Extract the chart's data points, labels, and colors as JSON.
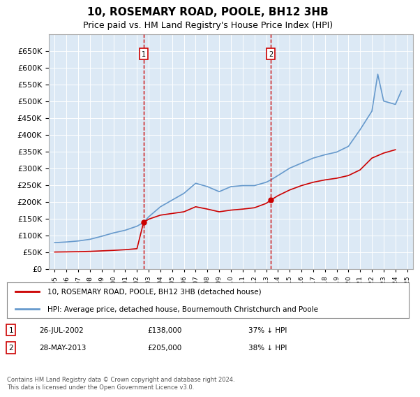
{
  "title": "10, ROSEMARY ROAD, POOLE, BH12 3HB",
  "subtitle": "Price paid vs. HM Land Registry's House Price Index (HPI)",
  "legend_line1": "10, ROSEMARY ROAD, POOLE, BH12 3HB (detached house)",
  "legend_line2": "HPI: Average price, detached house, Bournemouth Christchurch and Poole",
  "footer": "Contains HM Land Registry data © Crown copyright and database right 2024.\nThis data is licensed under the Open Government Licence v3.0.",
  "transaction1": {
    "date": "26-JUL-2002",
    "price": 138000,
    "label": "37% ↓ HPI",
    "year": 2002.56
  },
  "transaction2": {
    "date": "28-MAY-2013",
    "price": 205000,
    "label": "38% ↓ HPI",
    "year": 2013.4
  },
  "background_color": "#dce9f5",
  "plot_bg_color": "#dce9f5",
  "red_color": "#cc0000",
  "blue_color": "#6699cc",
  "ylim": [
    0,
    700000
  ],
  "yticks": [
    0,
    50000,
    100000,
    150000,
    200000,
    250000,
    300000,
    350000,
    400000,
    450000,
    500000,
    550000,
    600000,
    650000
  ],
  "hpi_years": [
    1995,
    1996,
    1997,
    1998,
    1999,
    2000,
    2001,
    2002,
    2002.56,
    2003,
    2004,
    2005,
    2006,
    2007,
    2008,
    2009,
    2010,
    2011,
    2012,
    2013,
    2013.4,
    2014,
    2015,
    2016,
    2017,
    2018,
    2019,
    2020,
    2021,
    2022,
    2022.5,
    2023,
    2024,
    2024.5
  ],
  "hpi_values": [
    78000,
    80000,
    83000,
    88000,
    97000,
    107000,
    115000,
    127000,
    138000,
    155000,
    185000,
    205000,
    225000,
    255000,
    245000,
    230000,
    245000,
    248000,
    248000,
    258000,
    265000,
    278000,
    300000,
    315000,
    330000,
    340000,
    348000,
    365000,
    415000,
    470000,
    580000,
    500000,
    490000,
    530000
  ],
  "property_years": [
    1995,
    1996,
    1997,
    1998,
    1999,
    2000,
    2001,
    2002,
    2002.56,
    2003,
    2004,
    2005,
    2006,
    2007,
    2008,
    2009,
    2010,
    2011,
    2012,
    2013,
    2013.4,
    2014,
    2015,
    2016,
    2017,
    2018,
    2019,
    2020,
    2021,
    2022,
    2023,
    2024
  ],
  "property_values": [
    50000,
    50500,
    51000,
    52000,
    53500,
    55000,
    57000,
    60000,
    138000,
    148000,
    160000,
    165000,
    170000,
    185000,
    178000,
    170000,
    175000,
    178000,
    182000,
    195000,
    205000,
    218000,
    235000,
    248000,
    258000,
    265000,
    270000,
    278000,
    295000,
    330000,
    345000,
    355000
  ]
}
